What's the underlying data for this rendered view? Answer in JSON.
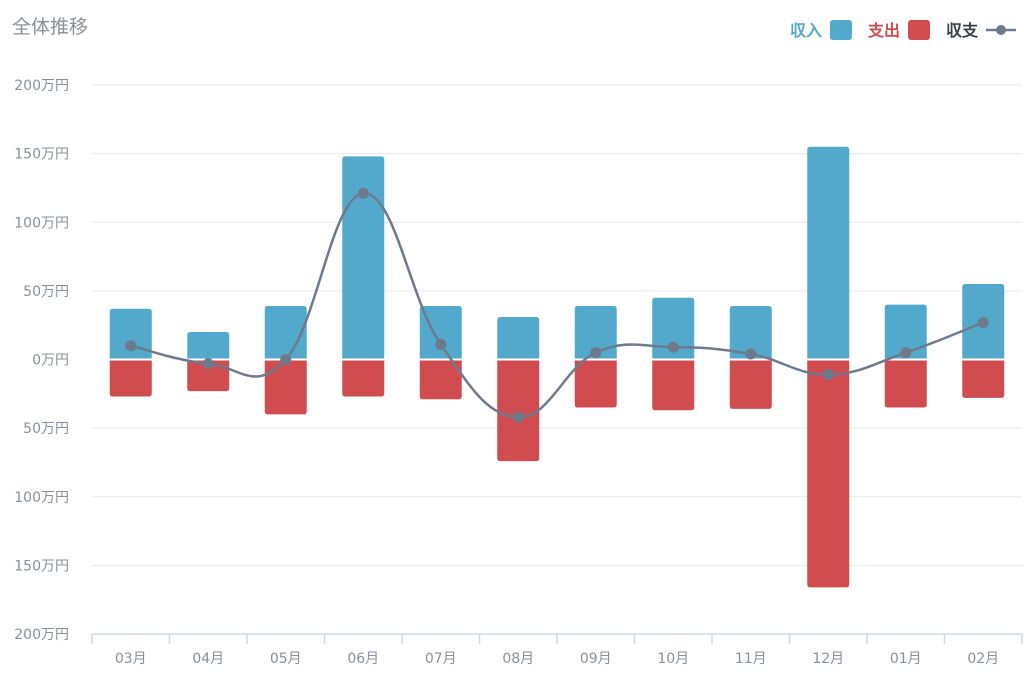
{
  "chart_data": {
    "type": "bar",
    "title": "全体推移",
    "categories": [
      "03月",
      "04月",
      "05月",
      "06月",
      "07月",
      "08月",
      "09月",
      "10月",
      "11月",
      "12月",
      "01月",
      "02月"
    ],
    "series": [
      {
        "name": "収入",
        "type": "bar",
        "color": "#52a9cb",
        "values": [
          37,
          20,
          39,
          148,
          39,
          31,
          39,
          45,
          39,
          155,
          40,
          55
        ]
      },
      {
        "name": "支出",
        "type": "bar",
        "color": "#d14c4f",
        "values": [
          -27,
          -23,
          -40,
          -27,
          -29,
          -74,
          -35,
          -37,
          -36,
          -166,
          -35,
          -28
        ]
      },
      {
        "name": "収支",
        "type": "line",
        "color": "#6e7a8c",
        "values": [
          10,
          -3,
          0,
          121,
          11,
          -42,
          5,
          9,
          4,
          -11,
          5,
          27
        ]
      }
    ],
    "y_ticks": [
      "200万円",
      "150万円",
      "100万円",
      "50万円",
      "0万円",
      "50万円",
      "100万円",
      "150万円",
      "200万円"
    ],
    "y_tick_values": [
      200,
      150,
      100,
      50,
      0,
      -50,
      -100,
      -150,
      -200
    ],
    "ylim": [
      -200,
      200
    ],
    "grid": true,
    "legend_position": "top-right",
    "xlabel": "",
    "ylabel": ""
  }
}
